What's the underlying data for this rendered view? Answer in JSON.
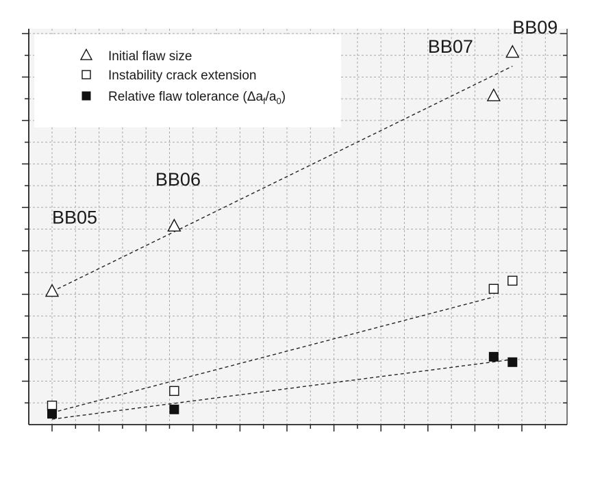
{
  "chart_data": {
    "type": "scatter",
    "title": "",
    "xlabel": "",
    "ylabel": "",
    "grid": true,
    "legend_position": "top-left",
    "xlim": [
      0,
      11.5
    ],
    "ylim": [
      0,
      7.5
    ],
    "series": [
      {
        "name": "Initial flaw size",
        "marker": "triangle-open",
        "x": [
          0.0,
          2.6,
          9.4,
          9.8
        ],
        "y": [
          2.45,
          3.65,
          6.05,
          6.85
        ],
        "trend": {
          "x0": 0.0,
          "y0": 2.45,
          "x1": 9.8,
          "y1": 6.6
        }
      },
      {
        "name": "Instability crack extension",
        "marker": "square-open",
        "x": [
          0.0,
          2.6,
          9.4,
          9.8
        ],
        "y": [
          0.35,
          0.62,
          2.5,
          2.65
        ],
        "trend": {
          "x0": 0.0,
          "y0": 0.22,
          "x1": 9.4,
          "y1": 2.35
        }
      },
      {
        "name": "Relative flaw tolerance (Δaf/a0)",
        "marker": "square-filled",
        "x": [
          0.0,
          2.6,
          9.4,
          9.8
        ],
        "y": [
          0.2,
          0.28,
          1.25,
          1.15
        ],
        "trend": {
          "x0": 0.0,
          "y0": 0.1,
          "x1": 9.8,
          "y1": 1.2
        }
      }
    ],
    "legend_entries": [
      {
        "label": "Initial flaw size",
        "marker": "triangle-open"
      },
      {
        "label": "Instability crack extension",
        "marker": "square-open"
      },
      {
        "label_prefix": "Relative flaw tolerance (Δa",
        "sub_1": "f",
        "label_mid": "/a",
        "sub_2": "0",
        "label_suffix": ")",
        "marker": "square-filled"
      }
    ],
    "annotations": [
      {
        "text": "BB05",
        "x": 0.0,
        "y": 3.7
      },
      {
        "text": "BB06",
        "x": 2.2,
        "y": 4.4
      },
      {
        "text": "BB07",
        "x": 8.0,
        "y": 6.85
      },
      {
        "text": "BB09",
        "x": 9.8,
        "y": 7.2
      }
    ],
    "colors": {
      "background": "#ffffff",
      "plot_background": "#f4f4f4",
      "legend_background": "#ffffff",
      "grid": "#a8a8a8",
      "axis": "#222222",
      "marker": "#111111",
      "trend": "#222222"
    }
  }
}
